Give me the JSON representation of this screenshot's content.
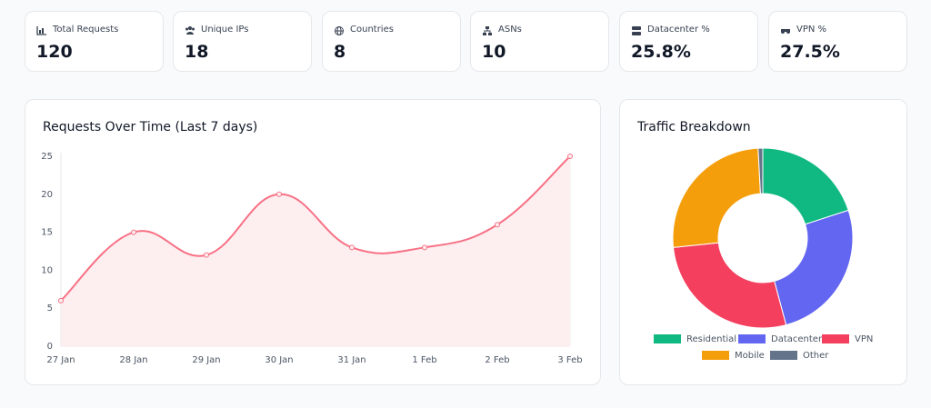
{
  "stats": [
    {
      "label": "Total Requests",
      "value": "120"
    },
    {
      "label": "Unique IPs",
      "value": "18"
    },
    {
      "label": "Countries",
      "value": "8"
    },
    {
      "label": "ASNs",
      "value": "10"
    },
    {
      "label": "Datacenter %",
      "value": "25.8%"
    },
    {
      "label": "VPN %",
      "value": "27.5%"
    }
  ],
  "chart_data": [
    {
      "type": "line",
      "title": "Requests Over Time (Last 7 days)",
      "categories": [
        "27 Jan",
        "28 Jan",
        "29 Jan",
        "30 Jan",
        "31 Jan",
        "1 Feb",
        "2 Feb",
        "3 Feb"
      ],
      "values": [
        6,
        15,
        12,
        20,
        13,
        13,
        16,
        25
      ],
      "color": "#f87185",
      "fill": "#fdeef0",
      "ylim": [
        0,
        25
      ],
      "yticks": [
        0,
        5,
        10,
        15,
        20,
        25
      ],
      "grid": false
    },
    {
      "type": "doughnut",
      "title": "Traffic Breakdown",
      "categories": [
        "Residential",
        "Datacenter",
        "VPN",
        "Mobile",
        "Other"
      ],
      "values": [
        24,
        31,
        33,
        31,
        1
      ],
      "colors": [
        "#10b981",
        "#6366f1",
        "#f43f5e",
        "#f59e0b",
        "#64748b"
      ]
    }
  ]
}
